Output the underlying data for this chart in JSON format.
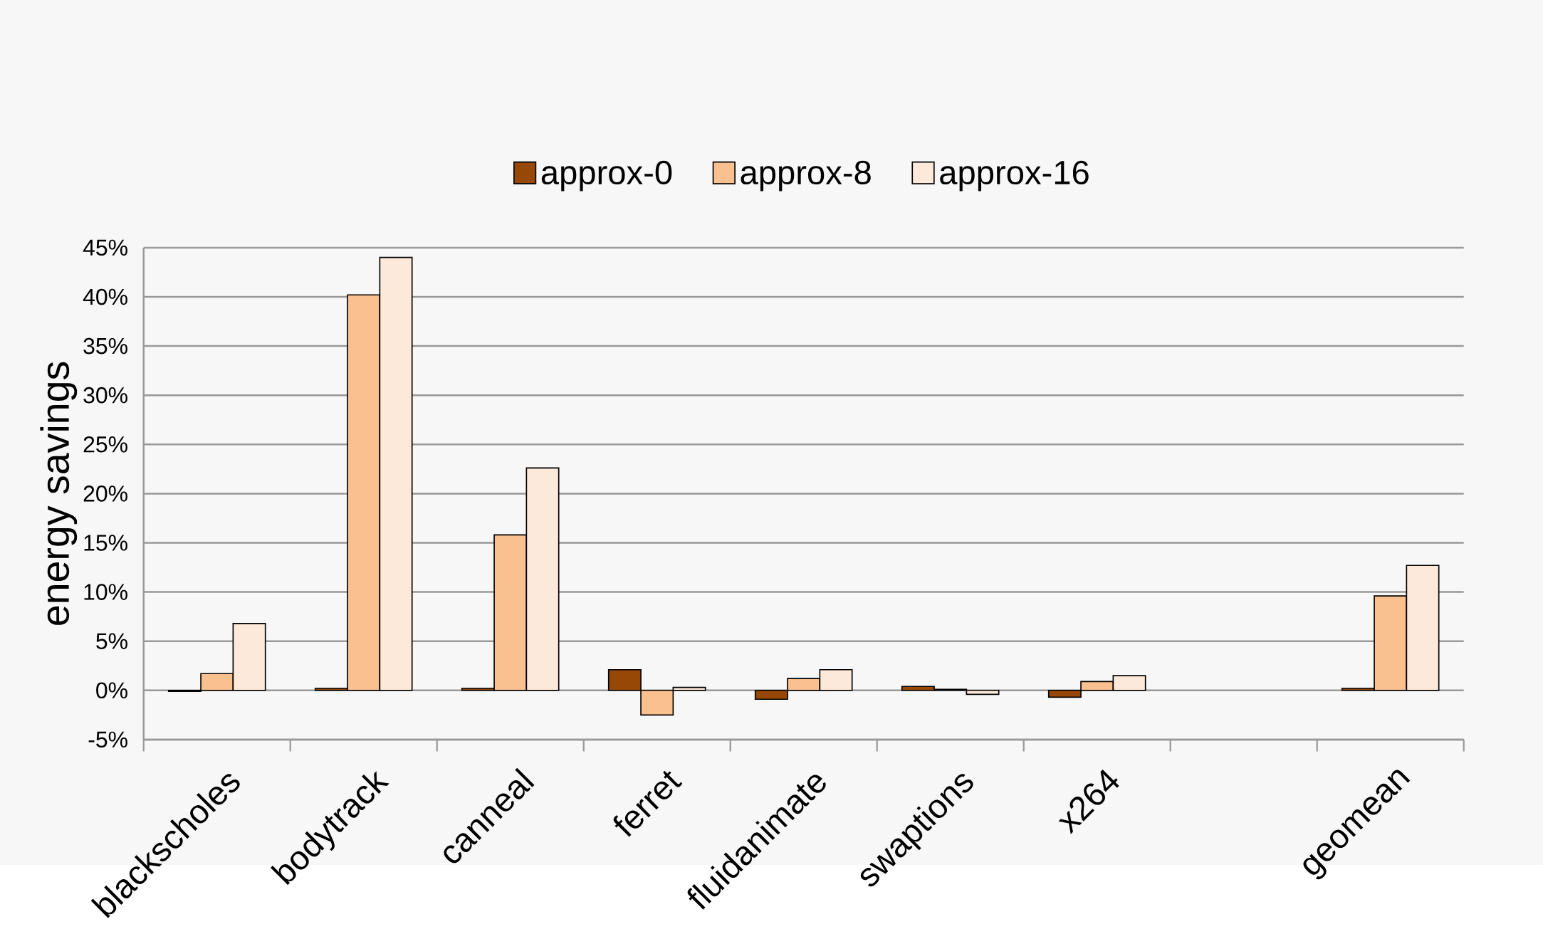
{
  "chart_data": {
    "type": "bar",
    "ylabel": "energy savings",
    "categories": [
      "blackscholes",
      "bodytrack",
      "canneal",
      "ferret",
      "fluidanimate",
      "swaptions",
      "x264",
      null,
      "geomean"
    ],
    "series": [
      {
        "name": "approx-0",
        "color": "#974806",
        "values": [
          -0.1,
          0.2,
          0.2,
          2.1,
          -0.9,
          0.4,
          -0.7,
          null,
          0.2
        ]
      },
      {
        "name": "approx-8",
        "color": "#fac090",
        "values": [
          1.7,
          40.2,
          15.8,
          -2.5,
          1.2,
          0.1,
          0.9,
          null,
          9.6
        ]
      },
      {
        "name": "approx-16",
        "color": "#fde9d9",
        "values": [
          6.8,
          44.0,
          22.6,
          0.3,
          2.1,
          -0.4,
          1.5,
          null,
          12.7
        ]
      }
    ],
    "ylim": [
      -5,
      45
    ],
    "yticks": [
      {
        "value": -5,
        "label": "-5%"
      },
      {
        "value": 0,
        "label": "0%"
      },
      {
        "value": 5,
        "label": "5%"
      },
      {
        "value": 10,
        "label": "10%"
      },
      {
        "value": 15,
        "label": "15%"
      },
      {
        "value": 20,
        "label": "20%"
      },
      {
        "value": 25,
        "label": "25%"
      },
      {
        "value": 30,
        "label": "30%"
      },
      {
        "value": 35,
        "label": "35%"
      },
      {
        "value": 40,
        "label": "40%"
      },
      {
        "value": 45,
        "label": "45%"
      }
    ],
    "grid": "y",
    "legend": "top"
  }
}
